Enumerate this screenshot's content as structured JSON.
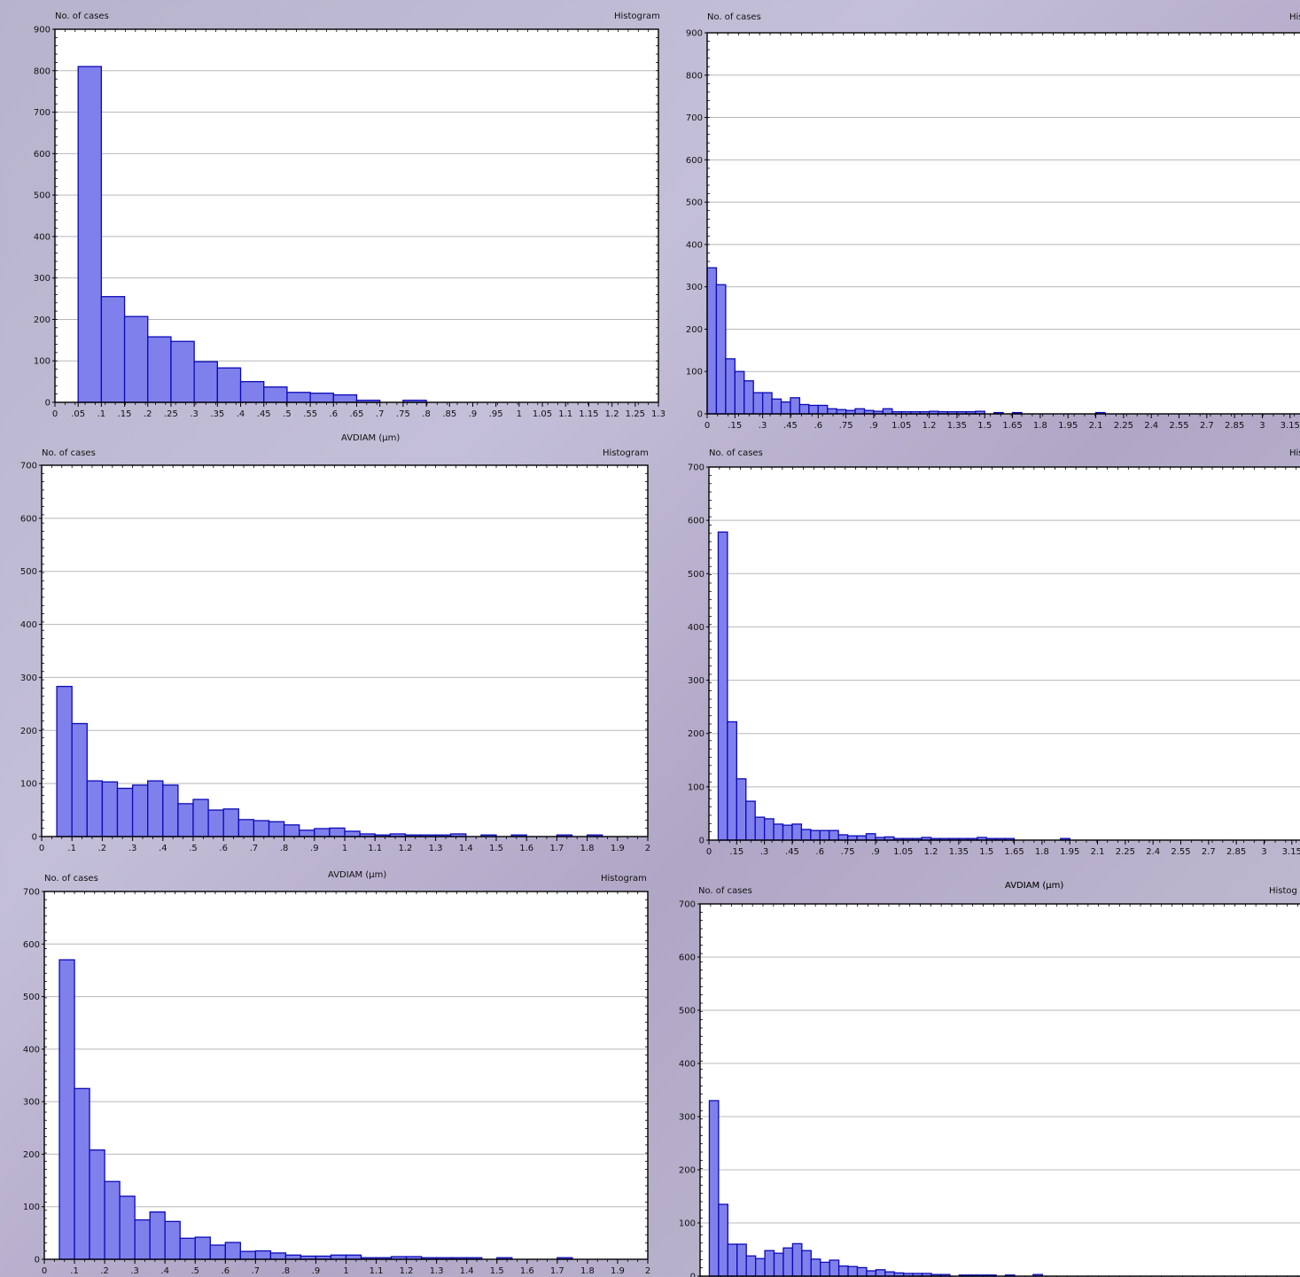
{
  "colors": {
    "bar_fill": "#8080ec",
    "bar_stroke": "#0a0ab8",
    "plot_bg": "#ffffff",
    "grid": "#b8b8b8"
  },
  "chart_data": [
    {
      "panel": "2A",
      "type": "bar",
      "ylabel": "No. of cases",
      "tag": "Histogram",
      "xlabel": "AVDIAM (μm)",
      "ylim": [
        0,
        900
      ],
      "yticks": [
        0,
        100,
        200,
        300,
        400,
        500,
        600,
        700,
        800,
        900
      ],
      "xlim": [
        0,
        1.3
      ],
      "xticks": [
        0,
        0.05,
        0.1,
        0.15,
        0.2,
        0.25,
        0.3,
        0.35,
        0.4,
        0.45,
        0.5,
        0.55,
        0.6,
        0.65,
        0.7,
        0.75,
        0.8,
        0.85,
        0.9,
        0.95,
        1,
        1.05,
        1.1,
        1.15,
        1.2,
        1.25,
        1.3
      ],
      "xtick_labels": [
        "0",
        ".05",
        ".1",
        ".15",
        ".2",
        ".25",
        ".3",
        ".35",
        ".4",
        ".45",
        ".5",
        ".55",
        ".6",
        ".65",
        ".7",
        ".75",
        ".8",
        ".85",
        ".9",
        ".95",
        "1",
        "1.05",
        "1.1",
        "1.15",
        "1.2",
        "1.25",
        "1.3"
      ],
      "bin_start": 0.05,
      "bin_width": 0.05,
      "values": [
        810,
        255,
        207,
        158,
        147,
        98,
        83,
        50,
        37,
        24,
        22,
        18,
        5,
        0,
        5
      ]
    },
    {
      "panel": "2B",
      "type": "bar",
      "ylabel": "No. of cases",
      "tag": "His",
      "xlabel": "",
      "ylim": [
        0,
        900
      ],
      "yticks": [
        0,
        100,
        200,
        300,
        400,
        500,
        600,
        700,
        800,
        900
      ],
      "xlim": [
        0,
        3.4
      ],
      "xticks": [
        0,
        0.15,
        0.3,
        0.45,
        0.6,
        0.75,
        0.9,
        1.05,
        1.2,
        1.35,
        1.5,
        1.65,
        1.8,
        1.95,
        2.1,
        2.25,
        2.4,
        2.55,
        2.7,
        2.85,
        3,
        3.15,
        3.3
      ],
      "xtick_labels": [
        "0",
        ".15",
        ".3",
        ".45",
        ".6",
        ".75",
        ".9",
        "1.05",
        "1.2",
        "1.35",
        "1.5",
        "1.65",
        "1.8",
        "1.95",
        "2.1",
        "2.25",
        "2.4",
        "2.55",
        "2.7",
        "2.85",
        "3",
        "3.15",
        "3.3"
      ],
      "bin_start": 0,
      "bin_width": 0.05,
      "values": [
        345,
        305,
        130,
        100,
        78,
        50,
        50,
        35,
        28,
        38,
        22,
        20,
        20,
        12,
        10,
        8,
        12,
        8,
        6,
        12,
        5,
        5,
        5,
        5,
        6,
        5,
        5,
        5,
        5,
        6,
        0,
        3,
        0,
        3,
        0,
        0,
        0,
        0,
        0,
        0,
        0,
        0,
        3
      ]
    },
    {
      "panel": "2C",
      "type": "bar",
      "ylabel": "No. of cases",
      "tag": "Histogram",
      "xlabel": "AVDIAM (μm)",
      "ylim": [
        0,
        700
      ],
      "yticks": [
        0,
        100,
        200,
        300,
        400,
        500,
        600,
        700
      ],
      "xlim": [
        0,
        2
      ],
      "xticks": [
        0,
        0.1,
        0.2,
        0.3,
        0.4,
        0.5,
        0.6,
        0.7,
        0.8,
        0.9,
        1,
        1.1,
        1.2,
        1.3,
        1.4,
        1.5,
        1.6,
        1.7,
        1.8,
        1.9,
        2
      ],
      "xtick_labels": [
        "0",
        ".1",
        ".2",
        ".3",
        ".4",
        ".5",
        ".6",
        ".7",
        ".8",
        ".9",
        "1",
        "1.1",
        "1.2",
        "1.3",
        "1.4",
        "1.5",
        "1.6",
        "1.7",
        "1.8",
        "1.9",
        "2"
      ],
      "bin_start": 0.05,
      "bin_width": 0.05,
      "values": [
        283,
        213,
        105,
        103,
        91,
        97,
        105,
        97,
        62,
        70,
        50,
        52,
        32,
        30,
        28,
        22,
        12,
        15,
        16,
        10,
        5,
        3,
        5,
        3,
        3,
        3,
        5,
        0,
        3,
        0,
        3,
        0,
        0,
        3,
        0,
        3
      ]
    },
    {
      "panel": "2D",
      "type": "bar",
      "ylabel": "No. of cases",
      "tag": "His",
      "xlabel": "AVDIAM (μm)",
      "ylim": [
        0,
        700
      ],
      "yticks": [
        0,
        100,
        200,
        300,
        400,
        500,
        600,
        700
      ],
      "xlim": [
        0,
        3.4
      ],
      "xticks": [
        0,
        0.15,
        0.3,
        0.45,
        0.6,
        0.75,
        0.9,
        1.05,
        1.2,
        1.35,
        1.5,
        1.65,
        1.8,
        1.95,
        2.1,
        2.25,
        2.4,
        2.55,
        2.7,
        2.85,
        3,
        3.15,
        3.3
      ],
      "xtick_labels": [
        "0",
        ".15",
        ".3",
        ".45",
        ".6",
        ".75",
        ".9",
        "1.05",
        "1.2",
        "1.35",
        "1.5",
        "1.65",
        "1.8",
        "1.95",
        "2.1",
        "2.25",
        "2.4",
        "2.55",
        "2.7",
        "2.85",
        "3",
        "3.15",
        "3.3"
      ],
      "bin_start": 0.05,
      "bin_width": 0.05,
      "values": [
        578,
        222,
        115,
        73,
        43,
        40,
        30,
        28,
        30,
        20,
        18,
        18,
        18,
        10,
        8,
        8,
        12,
        5,
        6,
        3,
        3,
        3,
        5,
        3,
        3,
        3,
        3,
        3,
        5,
        3,
        3,
        3,
        0,
        0,
        0,
        0,
        0,
        3
      ]
    },
    {
      "panel": "2E",
      "type": "bar",
      "ylabel": "No. of cases",
      "tag": "Histogram",
      "xlabel": "",
      "ylim": [
        0,
        700
      ],
      "yticks": [
        0,
        100,
        200,
        300,
        400,
        500,
        600,
        700
      ],
      "xlim": [
        0,
        2
      ],
      "xticks": [
        0,
        0.1,
        0.2,
        0.3,
        0.4,
        0.5,
        0.6,
        0.7,
        0.8,
        0.9,
        1,
        1.1,
        1.2,
        1.3,
        1.4,
        1.5,
        1.6,
        1.7,
        1.8,
        1.9,
        2
      ],
      "xtick_labels": [
        "0",
        ".1",
        ".2",
        ".3",
        ".4",
        ".5",
        ".6",
        ".7",
        ".8",
        ".9",
        "1",
        "1.1",
        "1.2",
        "1.3",
        "1.4",
        "1.5",
        "1.6",
        "1.7",
        "1.8",
        "1.9",
        "2"
      ],
      "bin_start": 0.05,
      "bin_width": 0.05,
      "values": [
        570,
        325,
        208,
        148,
        120,
        75,
        90,
        72,
        40,
        42,
        27,
        32,
        15,
        16,
        12,
        8,
        6,
        6,
        8,
        8,
        3,
        3,
        5,
        5,
        3,
        3,
        3,
        3,
        0,
        3,
        0,
        0,
        0,
        3
      ]
    },
    {
      "panel": "2F",
      "type": "bar",
      "ylabel": "No. of cases",
      "tag": "Histog",
      "xlabel": "AVDIAM (μm)",
      "ylim": [
        0,
        700
      ],
      "yticks": [
        0,
        100,
        200,
        300,
        400,
        500,
        600,
        700
      ],
      "xlim": [
        0,
        3.4
      ],
      "xticks": [],
      "xtick_labels": [],
      "bin_start": 0.05,
      "bin_width": 0.05,
      "values": [
        330,
        135,
        60,
        60,
        38,
        33,
        48,
        43,
        53,
        61,
        48,
        32,
        26,
        30,
        19,
        18,
        16,
        10,
        12,
        8,
        6,
        5,
        5,
        5,
        3,
        3,
        0,
        2,
        2,
        2,
        2,
        0,
        2,
        0,
        0,
        3
      ]
    }
  ]
}
